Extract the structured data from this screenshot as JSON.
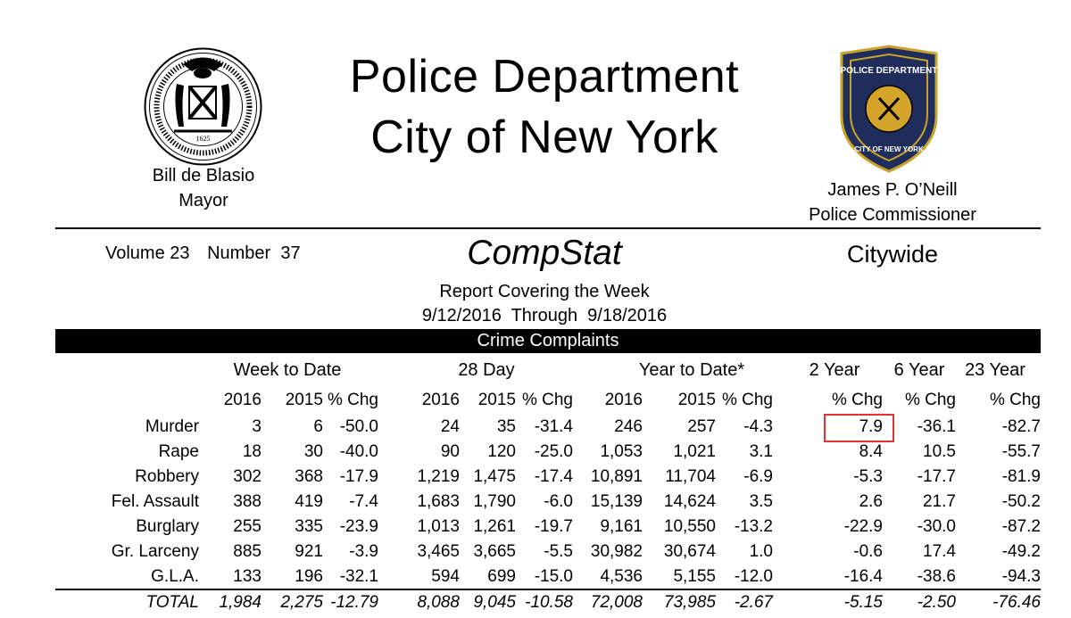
{
  "header": {
    "title_line1": "Police Department",
    "title_line2": "City of New York",
    "mayor_name": "Bill de Blasio",
    "mayor_title": "Mayor",
    "commissioner_name": "James P. O’Neill",
    "commissioner_title": "Police Commissioner",
    "seal_year": "1625",
    "badge_text_top": "POLICE DEPARTMENT",
    "badge_text_bottom": "CITY OF NEW YORK"
  },
  "report": {
    "volume_label": "Volume 23",
    "number_label": "Number  37",
    "name": "CompStat",
    "scope": "Citywide",
    "covering": "Report Covering the Week",
    "dates": "9/12/2016  Through  9/18/2016",
    "section_title": "Crime Complaints"
  },
  "groups": {
    "week": "Week to Date",
    "day28": "28 Day",
    "ytd": "Year to Date*",
    "y2": "2 Year",
    "y6": "6 Year",
    "y23": "23 Year"
  },
  "col_headers": [
    "2016",
    "2015",
    "% Chg",
    "2016",
    "2015",
    "% Chg",
    "2016",
    "2015",
    "% Chg",
    "% Chg",
    "% Chg",
    "% Chg"
  ],
  "rows": [
    {
      "label": "Murder",
      "values": [
        "3",
        "6",
        "-50.0",
        "24",
        "35",
        "-31.4",
        "246",
        "257",
        "-4.3",
        "7.9",
        "-36.1",
        "-82.7"
      ]
    },
    {
      "label": "Rape",
      "values": [
        "18",
        "30",
        "-40.0",
        "90",
        "120",
        "-25.0",
        "1,053",
        "1,021",
        "3.1",
        "8.4",
        "10.5",
        "-55.7"
      ]
    },
    {
      "label": "Robbery",
      "values": [
        "302",
        "368",
        "-17.9",
        "1,219",
        "1,475",
        "-17.4",
        "10,891",
        "11,704",
        "-6.9",
        "-5.3",
        "-17.7",
        "-81.9"
      ]
    },
    {
      "label": "Fel. Assault",
      "values": [
        "388",
        "419",
        "-7.4",
        "1,683",
        "1,790",
        "-6.0",
        "15,139",
        "14,624",
        "3.5",
        "2.6",
        "21.7",
        "-50.2"
      ]
    },
    {
      "label": "Burglary",
      "values": [
        "255",
        "335",
        "-23.9",
        "1,013",
        "1,261",
        "-19.7",
        "9,161",
        "10,550",
        "-13.2",
        "-22.9",
        "-30.0",
        "-87.2"
      ]
    },
    {
      "label": "Gr. Larceny",
      "values": [
        "885",
        "921",
        "-3.9",
        "3,465",
        "3,665",
        "-5.5",
        "30,982",
        "30,674",
        "1.0",
        "-0.6",
        "17.4",
        "-49.2"
      ]
    },
    {
      "label": "G.L.A.",
      "values": [
        "133",
        "196",
        "-32.1",
        "594",
        "699",
        "-15.0",
        "4,536",
        "5,155",
        "-12.0",
        "-16.4",
        "-38.6",
        "-94.3"
      ]
    }
  ],
  "total": {
    "label": "TOTAL",
    "values": [
      "1,984",
      "2,275",
      "-12.79",
      "8,088",
      "9,045",
      "-10.58",
      "72,008",
      "73,985",
      "-2.67",
      "-5.15",
      "-2.50",
      "-76.46"
    ]
  },
  "highlight_color": "#e2332f"
}
